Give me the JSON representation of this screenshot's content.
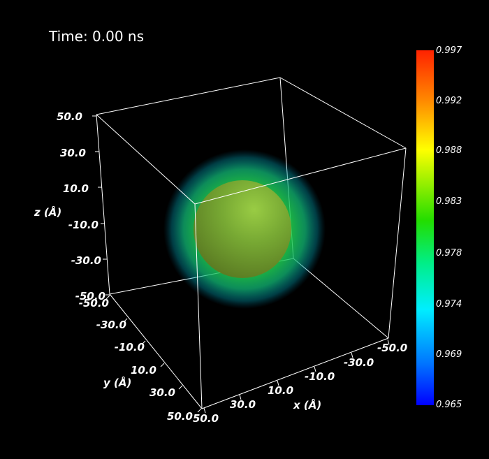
{
  "time_label": "Time: 0.00 ns",
  "axes": {
    "z": {
      "title": "z (Å)",
      "ticks": [
        "50.0",
        "30.0",
        "10.0",
        "-10.0",
        "-30.0",
        "-50.0"
      ]
    },
    "y": {
      "title": "y (Å)",
      "ticks": [
        "-50.0",
        "-30.0",
        "-10.0",
        "10.0",
        "30.0",
        "50.0"
      ]
    },
    "x": {
      "title": "x (Å)",
      "ticks": [
        "50.0",
        "30.0",
        "10.0",
        "-10.0",
        "-30.0",
        "-50.0"
      ]
    }
  },
  "colorbar": {
    "labels": [
      "0.997",
      "0.992",
      "0.988",
      "0.983",
      "0.978",
      "0.974",
      "0.969",
      "0.965"
    ],
    "colors": {
      "top": "#ff2200",
      "orange": "#ff8800",
      "yellow": "#ffff00",
      "green": "#22dd00",
      "teal": "#00ee88",
      "cyan": "#00eeff",
      "blue": "#0077ff",
      "bottom": "#0000ff"
    }
  },
  "colors": {
    "background": "#000000",
    "box_lines": "#ffffff"
  }
}
